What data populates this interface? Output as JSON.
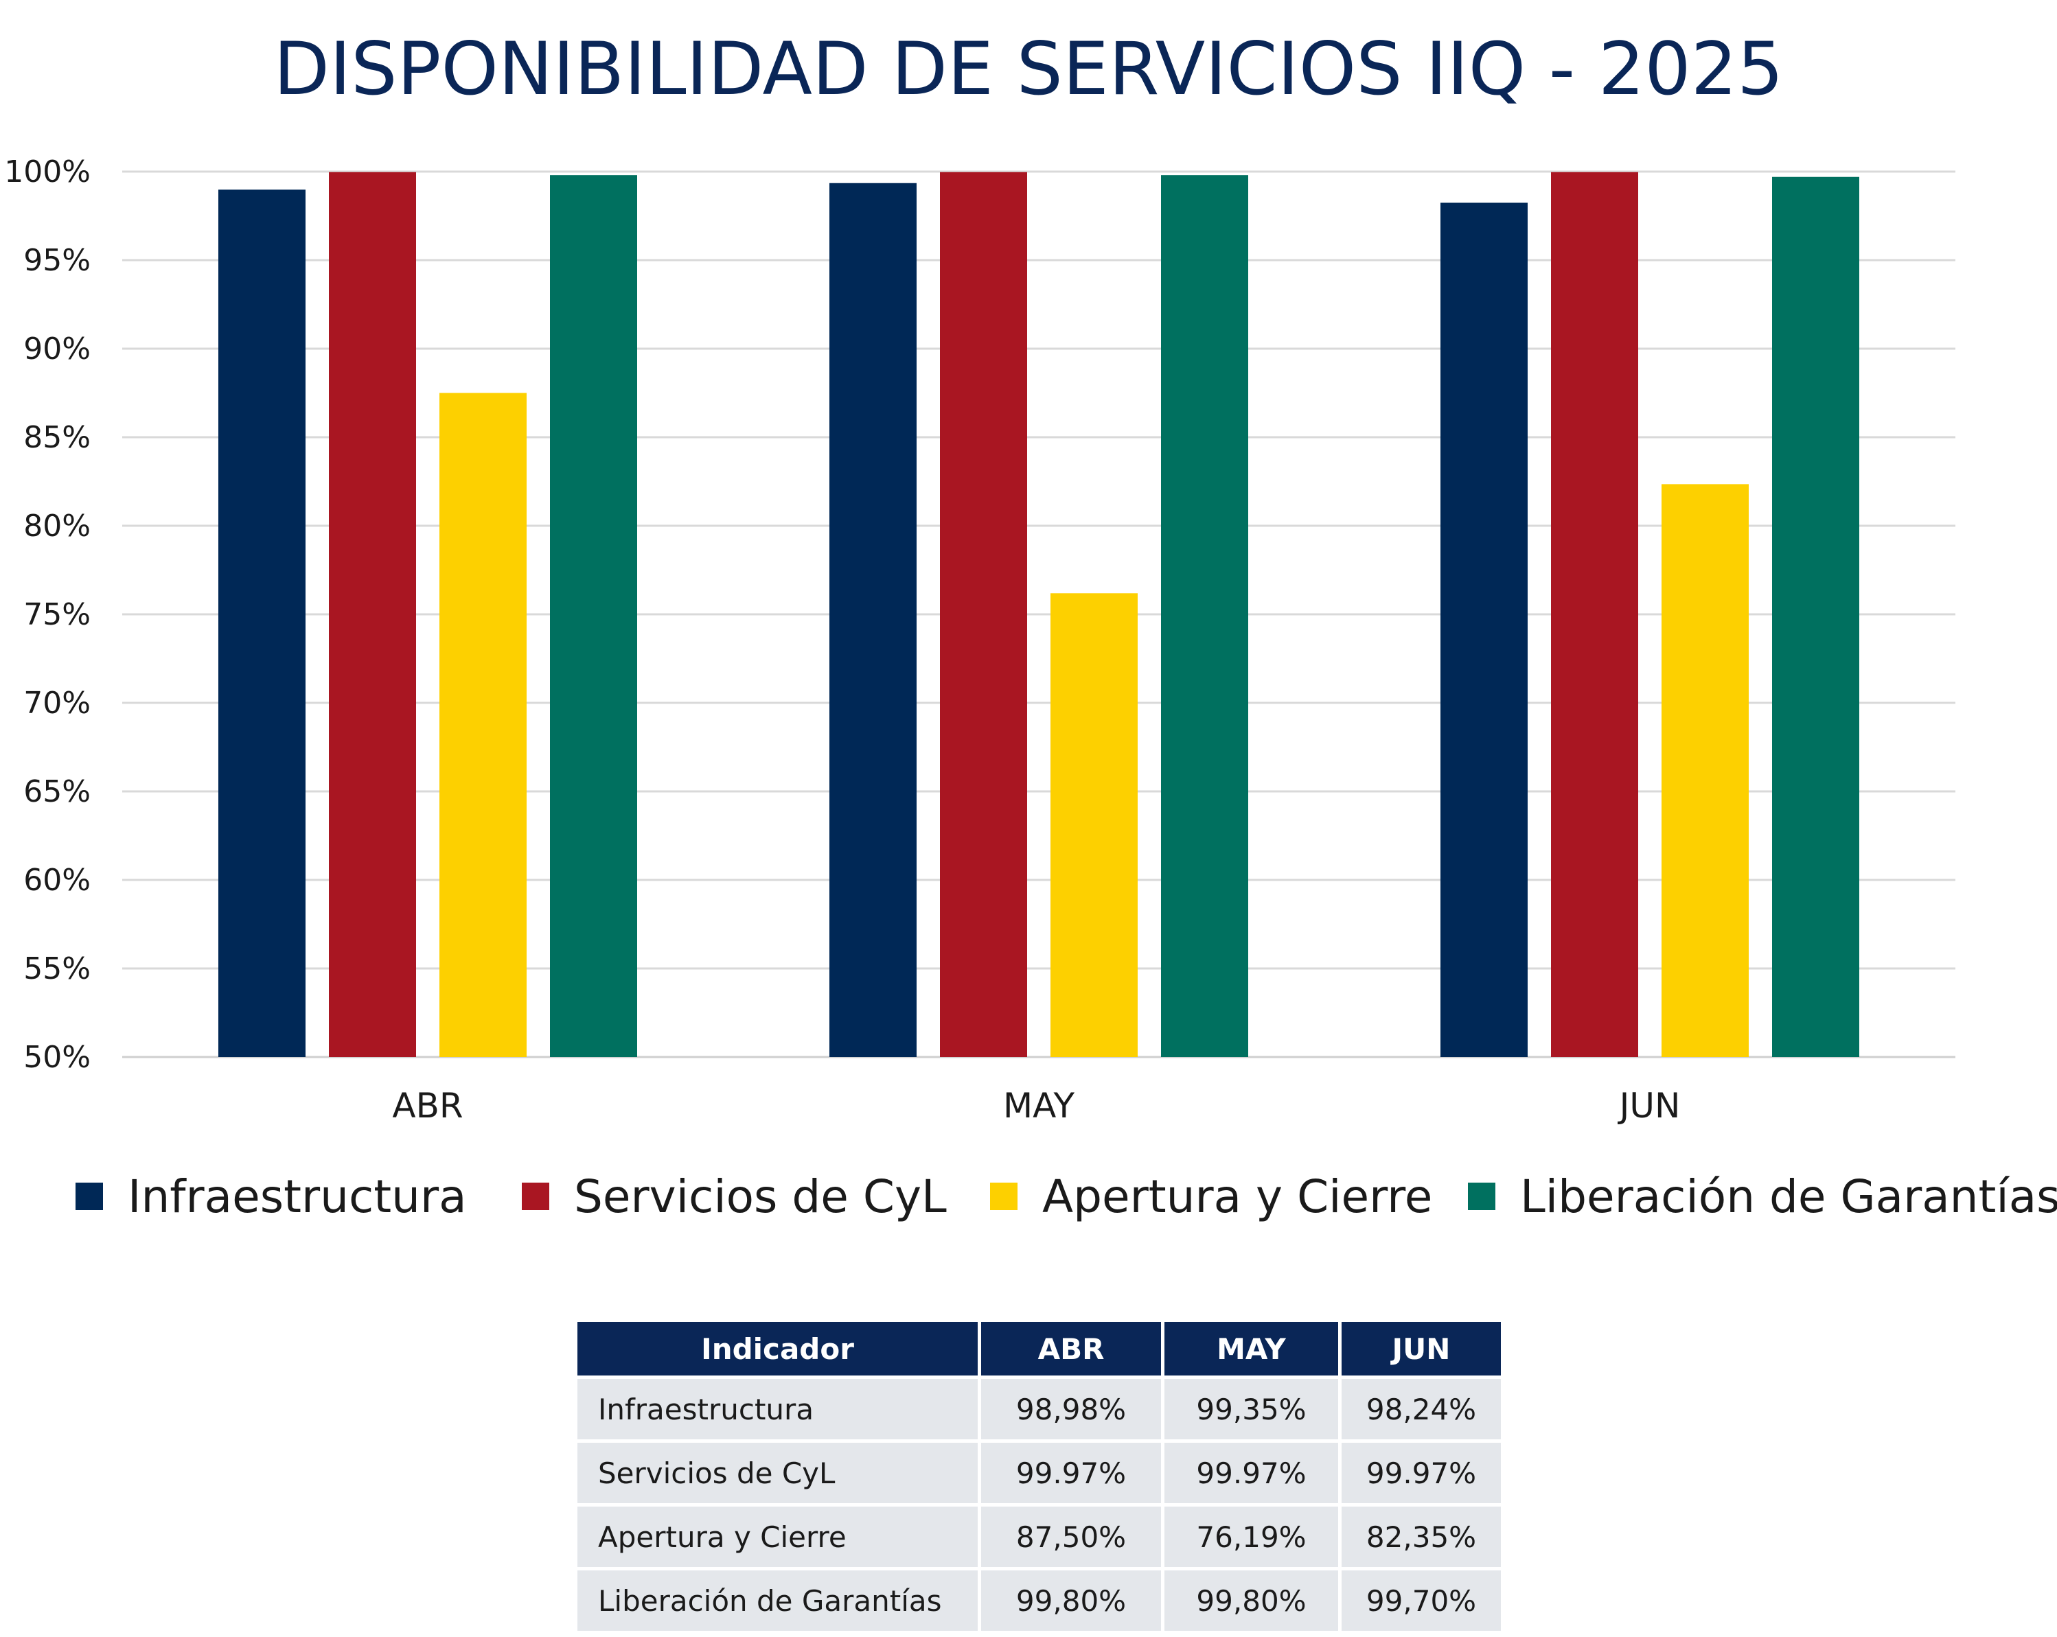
{
  "chart_data": {
    "type": "bar",
    "title": "DISPONIBILIDAD DE SERVICIOS IIQ - 2025",
    "categories": [
      "ABR",
      "MAY",
      "JUN"
    ],
    "series": [
      {
        "name": "Infraestructura",
        "values": [
          98.98,
          99.35,
          98.24
        ],
        "color": "#002856"
      },
      {
        "name": "Servicios de CyL",
        "values": [
          99.97,
          99.97,
          99.97
        ],
        "color": "#a91622"
      },
      {
        "name": "Apertura y Cierre",
        "values": [
          87.5,
          76.19,
          82.35
        ],
        "color": "#fdd000"
      },
      {
        "name": "Liberación de Garantías",
        "values": [
          99.8,
          99.8,
          99.7
        ],
        "color": "#00705f"
      }
    ],
    "ylim": [
      50,
      100
    ],
    "y_ticks": [
      "50%",
      "55%",
      "60%",
      "65%",
      "70%",
      "75%",
      "80%",
      "85%",
      "90%",
      "95%",
      "100%"
    ],
    "grid": true,
    "legend_position": "bottom"
  },
  "table": {
    "headers": [
      "Indicador",
      "ABR",
      "MAY",
      "JUN"
    ],
    "rows": [
      [
        "Infraestructura",
        "98,98%",
        "99,35%",
        "98,24%"
      ],
      [
        "Servicios de CyL",
        "99.97%",
        "99.97%",
        "99.97%"
      ],
      [
        "Apertura y Cierre",
        "87,50%",
        "76,19%",
        "82,35%"
      ],
      [
        "Liberación de Garantías",
        "99,80%",
        "99,80%",
        "99,70%"
      ]
    ]
  },
  "colors": {
    "title": "#0a2657",
    "table_header_bg": "#0a2657",
    "table_cell_bg": "#e4e7eb",
    "grid": "#d9d9d9"
  }
}
